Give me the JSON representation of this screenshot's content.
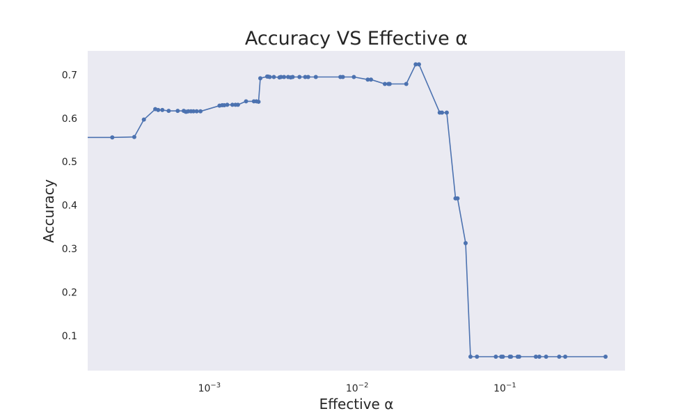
{
  "chart_data": {
    "type": "line",
    "title": "Accuracy VS Effective α",
    "xlabel": "Effective α",
    "ylabel": "Accuracy",
    "xscale": "log",
    "xlim": [
      0.00015,
      0.65
    ],
    "ylim": [
      0.02,
      0.755
    ],
    "grid": false,
    "background_color": "#eaeaf2",
    "line_color": "#4c72b0",
    "x_ticks": [
      {
        "value": 0.001,
        "base": "10",
        "exp": "−3"
      },
      {
        "value": 0.01,
        "base": "10",
        "exp": "−2"
      },
      {
        "value": 0.1,
        "base": "10",
        "exp": "−1"
      }
    ],
    "y_ticks": [
      {
        "value": 0.1,
        "label": "0.1"
      },
      {
        "value": 0.2,
        "label": "0.2"
      },
      {
        "value": 0.3,
        "label": "0.3"
      },
      {
        "value": 0.4,
        "label": "0.4"
      },
      {
        "value": 0.5,
        "label": "0.5"
      },
      {
        "value": 0.6,
        "label": "0.6"
      },
      {
        "value": 0.7,
        "label": "0.7"
      }
    ],
    "series": [
      {
        "x": [
          0,
          0.00022,
          0.00031,
          0.00036,
          0.00043,
          0.00045,
          0.00048,
          0.00053,
          0.00061,
          0.00067,
          0.00069,
          0.0007,
          0.00072,
          0.00075,
          0.00078,
          0.00082,
          0.00087,
          0.00117,
          0.00122,
          0.00126,
          0.00132,
          0.00143,
          0.0015,
          0.00156,
          0.00177,
          0.002,
          0.00208,
          0.00215,
          0.00221,
          0.00246,
          0.00249,
          0.00256,
          0.00273,
          0.00298,
          0.00305,
          0.0032,
          0.00341,
          0.00355,
          0.00366,
          0.00407,
          0.00445,
          0.00466,
          0.00525,
          0.0077,
          0.008,
          0.0095,
          0.0118,
          0.0124,
          0.0154,
          0.0163,
          0.0166,
          0.0215,
          0.0249,
          0.0262,
          0.0362,
          0.0375,
          0.0404,
          0.0463,
          0.0478,
          0.0542,
          0.0585,
          0.0647,
          0.0868,
          0.0945,
          0.0969,
          0.108,
          0.11,
          0.122,
          0.125,
          0.162,
          0.171,
          0.19,
          0.233,
          0.256,
          0.48
        ],
        "y": [
          0.556,
          0.556,
          0.557,
          0.597,
          0.621,
          0.619,
          0.619,
          0.617,
          0.617,
          0.617,
          0.615,
          0.615,
          0.616,
          0.616,
          0.616,
          0.616,
          0.616,
          0.629,
          0.63,
          0.63,
          0.631,
          0.631,
          0.631,
          0.631,
          0.639,
          0.639,
          0.639,
          0.638,
          0.692,
          0.696,
          0.696,
          0.695,
          0.695,
          0.694,
          0.695,
          0.695,
          0.695,
          0.694,
          0.695,
          0.695,
          0.695,
          0.695,
          0.695,
          0.695,
          0.695,
          0.695,
          0.689,
          0.689,
          0.679,
          0.679,
          0.679,
          0.679,
          0.724,
          0.724,
          0.613,
          0.613,
          0.613,
          0.416,
          0.416,
          0.313,
          0.052,
          0.052,
          0.052,
          0.052,
          0.052,
          0.052,
          0.052,
          0.052,
          0.052,
          0.052,
          0.052,
          0.052,
          0.052,
          0.052,
          0.052
        ]
      }
    ]
  }
}
